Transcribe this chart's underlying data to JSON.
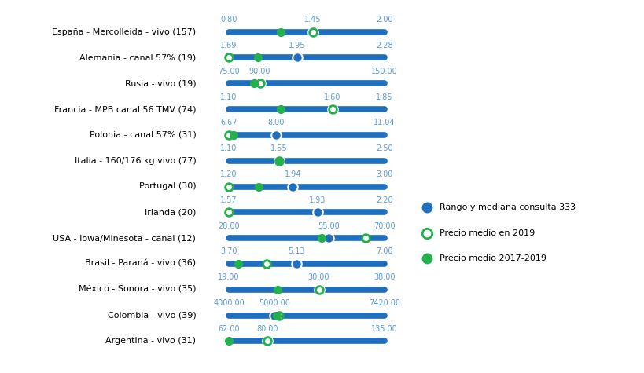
{
  "countries": [
    "España - Mercolleida - vivo (157)",
    "Alemania - canal 57% (19)",
    "Rusia - vivo (19)",
    "Francia - MPB canal 56 TMV (74)",
    "Polonia - canal 57% (31)",
    "Italia - 160/176 kg vivo (77)",
    "Portugal (30)",
    "Irlanda (20)",
    "USA - Iowa/Minesota - canal (12)",
    "Brasil - Paraná - vivo (36)",
    "México - Sonora - vivo (35)",
    "Colombia - vivo (39)",
    "Argentina - vivo (31)"
  ],
  "range_min": [
    0.8,
    1.69,
    75.0,
    1.1,
    6.67,
    1.1,
    1.2,
    1.57,
    28.0,
    3.7,
    19.0,
    4000.0,
    62.0
  ],
  "range_max": [
    2.0,
    2.28,
    150.0,
    1.85,
    11.04,
    2.5,
    3.0,
    2.2,
    70.0,
    7.0,
    38.0,
    7420.0,
    135.0
  ],
  "median": [
    1.45,
    1.95,
    90.0,
    1.6,
    8.0,
    1.55,
    1.94,
    1.93,
    55.0,
    5.13,
    30.0,
    5000.0,
    80.0
  ],
  "price_2019": [
    1.45,
    1.69,
    90.0,
    1.6,
    6.67,
    1.55,
    1.2,
    1.57,
    65.0,
    4.5,
    30.0,
    5100.0,
    80.0
  ],
  "price_2017_2019": [
    1.2,
    1.8,
    87.0,
    1.35,
    6.8,
    1.55,
    1.55,
    null,
    53.0,
    3.9,
    25.0,
    5050.0,
    62.0
  ],
  "num_labels_min": [
    "0.80",
    "1.69",
    "75.00",
    "1.10",
    "6.67",
    "1.10",
    "1.20",
    "1.57",
    "28.00",
    "3.70",
    "19.00",
    "4000.00",
    "62.00"
  ],
  "num_labels_med": [
    "1.45",
    "1.95",
    "90.00",
    "1.60",
    "8.00",
    "1.55",
    "1.94",
    "1.93",
    "55.00",
    "5.13",
    "30.00",
    "5000.00",
    "80.00"
  ],
  "num_labels_max": [
    "2.00",
    "2.28",
    "150.00",
    "1.85",
    "11.04",
    "2.50",
    "3.00",
    "2.20",
    "70.00",
    "7.00",
    "38.00",
    "7420.00",
    "135.00"
  ],
  "blue": "#1F6FBE",
  "green": "#22B14C",
  "label_blue": "#5B9BD5",
  "legend_labels": [
    "Rango y mediana consulta 333",
    "Precio medio en 2019",
    "Precio medio 2017-2019"
  ],
  "figsize": [
    8.2,
    4.75
  ],
  "dpi": 100
}
